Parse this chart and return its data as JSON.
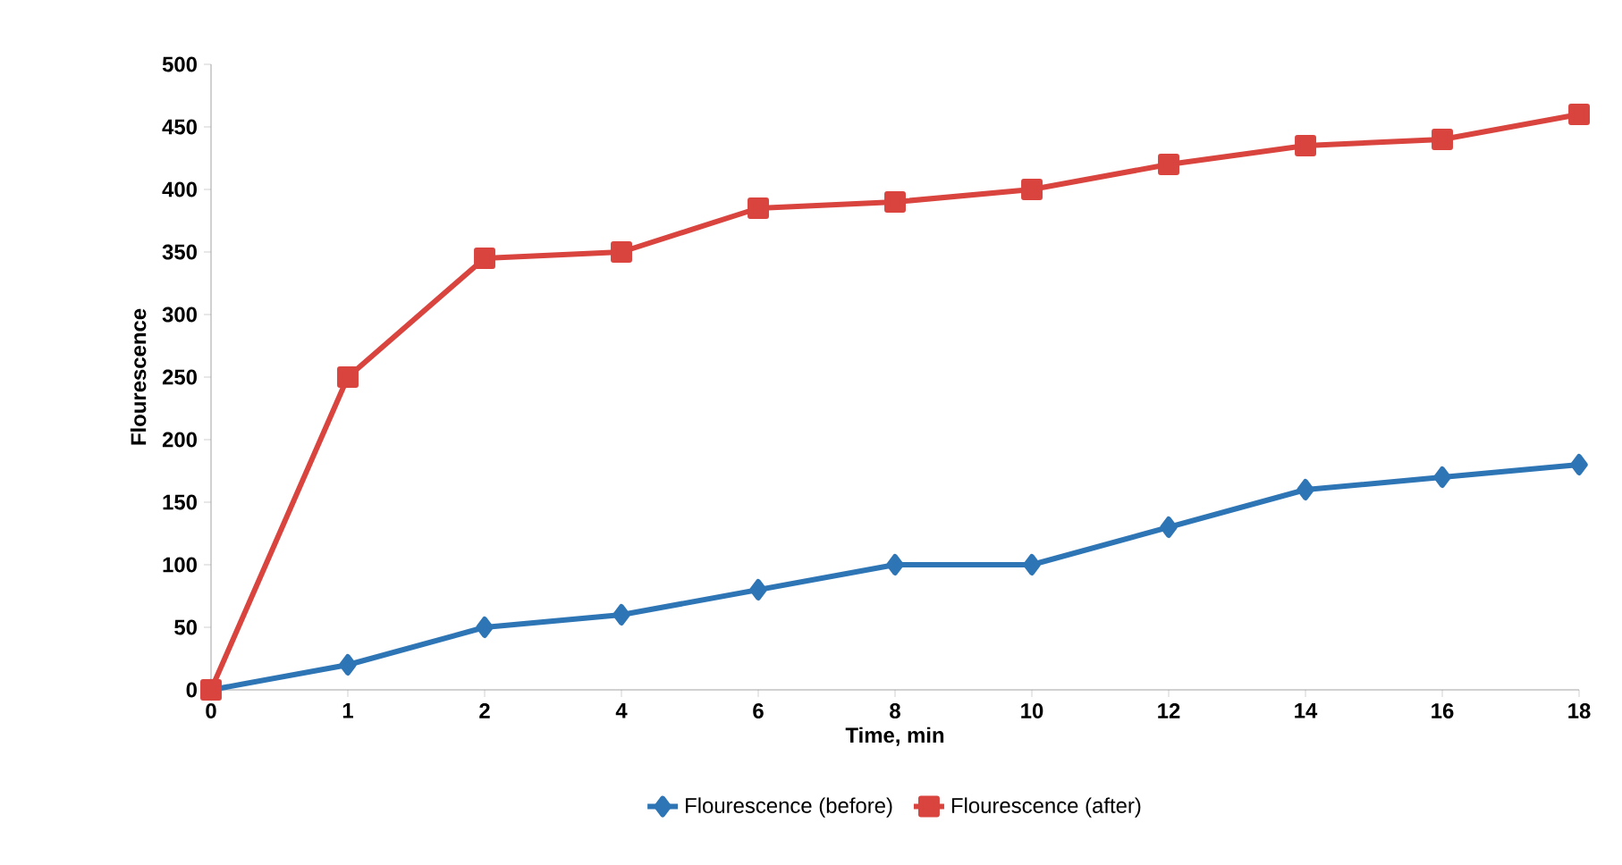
{
  "chart_data": {
    "type": "line",
    "xlabel": "Time, min",
    "ylabel": "Flourescence",
    "categories": [
      "0",
      "1",
      "2",
      "4",
      "6",
      "8",
      "10",
      "12",
      "14",
      "16",
      "18"
    ],
    "series": [
      {
        "name": "Flourescence (before)",
        "color": "#2e75b6",
        "marker": "diamond",
        "values": [
          0,
          20,
          50,
          60,
          80,
          100,
          100,
          130,
          160,
          170,
          180
        ]
      },
      {
        "name": "Flourescence (after)",
        "color": "#d9443f",
        "marker": "square",
        "values": [
          0,
          250,
          345,
          350,
          385,
          390,
          400,
          420,
          435,
          440,
          460
        ]
      }
    ],
    "ylim": [
      0,
      500
    ],
    "yticks": [
      0,
      50,
      100,
      150,
      200,
      250,
      300,
      350,
      400,
      450,
      500
    ],
    "grid": false,
    "legend": "bottom",
    "line_style": "solid"
  }
}
